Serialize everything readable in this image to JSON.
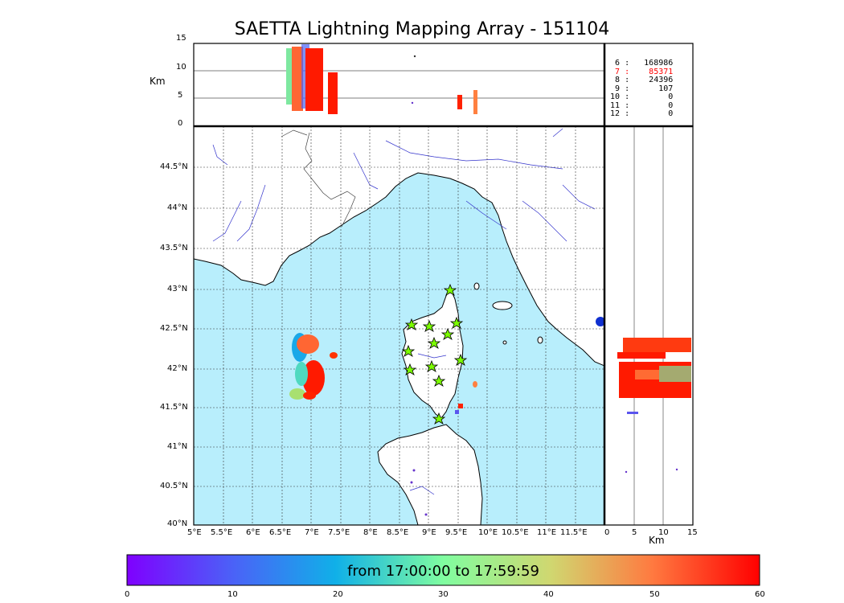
{
  "title": "SAETTA Lightning Mapping Array - 151104",
  "alt_label": "Km",
  "alt_ticks": [
    "15",
    "10",
    "5",
    "0"
  ],
  "lat_ticks": [
    "44.5°N",
    "44°N",
    "43.5°N",
    "43°N",
    "42.5°N",
    "42°N",
    "41.5°N",
    "41°N",
    "40.5°N",
    "40°N"
  ],
  "lon_ticks": [
    "5°E",
    "5.5°E",
    "6°E",
    "6.5°E",
    "7°E",
    "7.5°E",
    "8°E",
    "8.5°E",
    "9°E",
    "9.5°E",
    "10°E",
    "10.5°E",
    "11°E",
    "11.5°E"
  ],
  "side_ticks": [
    "0",
    "5",
    "10",
    "15"
  ],
  "side_km_label": "Km",
  "station_counts": [
    {
      "stations": "6",
      "count": "168986",
      "color": "#000000"
    },
    {
      "stations": "7",
      "count": "85371",
      "color": "#ff0000"
    },
    {
      "stations": "8",
      "count": "24396",
      "color": "#000000"
    },
    {
      "stations": "9",
      "count": "107",
      "color": "#000000"
    },
    {
      "stations": "10",
      "count": "0",
      "color": "#000000"
    },
    {
      "stations": "11",
      "count": "0",
      "color": "#000000"
    },
    {
      "stations": "12",
      "count": "0",
      "color": "#000000"
    }
  ],
  "colorbar": {
    "label": "from 17:00:00 to 17:59:59",
    "ticks": [
      "0",
      "10",
      "20",
      "30",
      "40",
      "50",
      "60"
    ],
    "min": 0,
    "max": 60
  },
  "colors": {
    "sea": "#b8eefc",
    "land": "#ffffff",
    "rivers": "#3333cc",
    "stations": "#7cfc00"
  }
}
